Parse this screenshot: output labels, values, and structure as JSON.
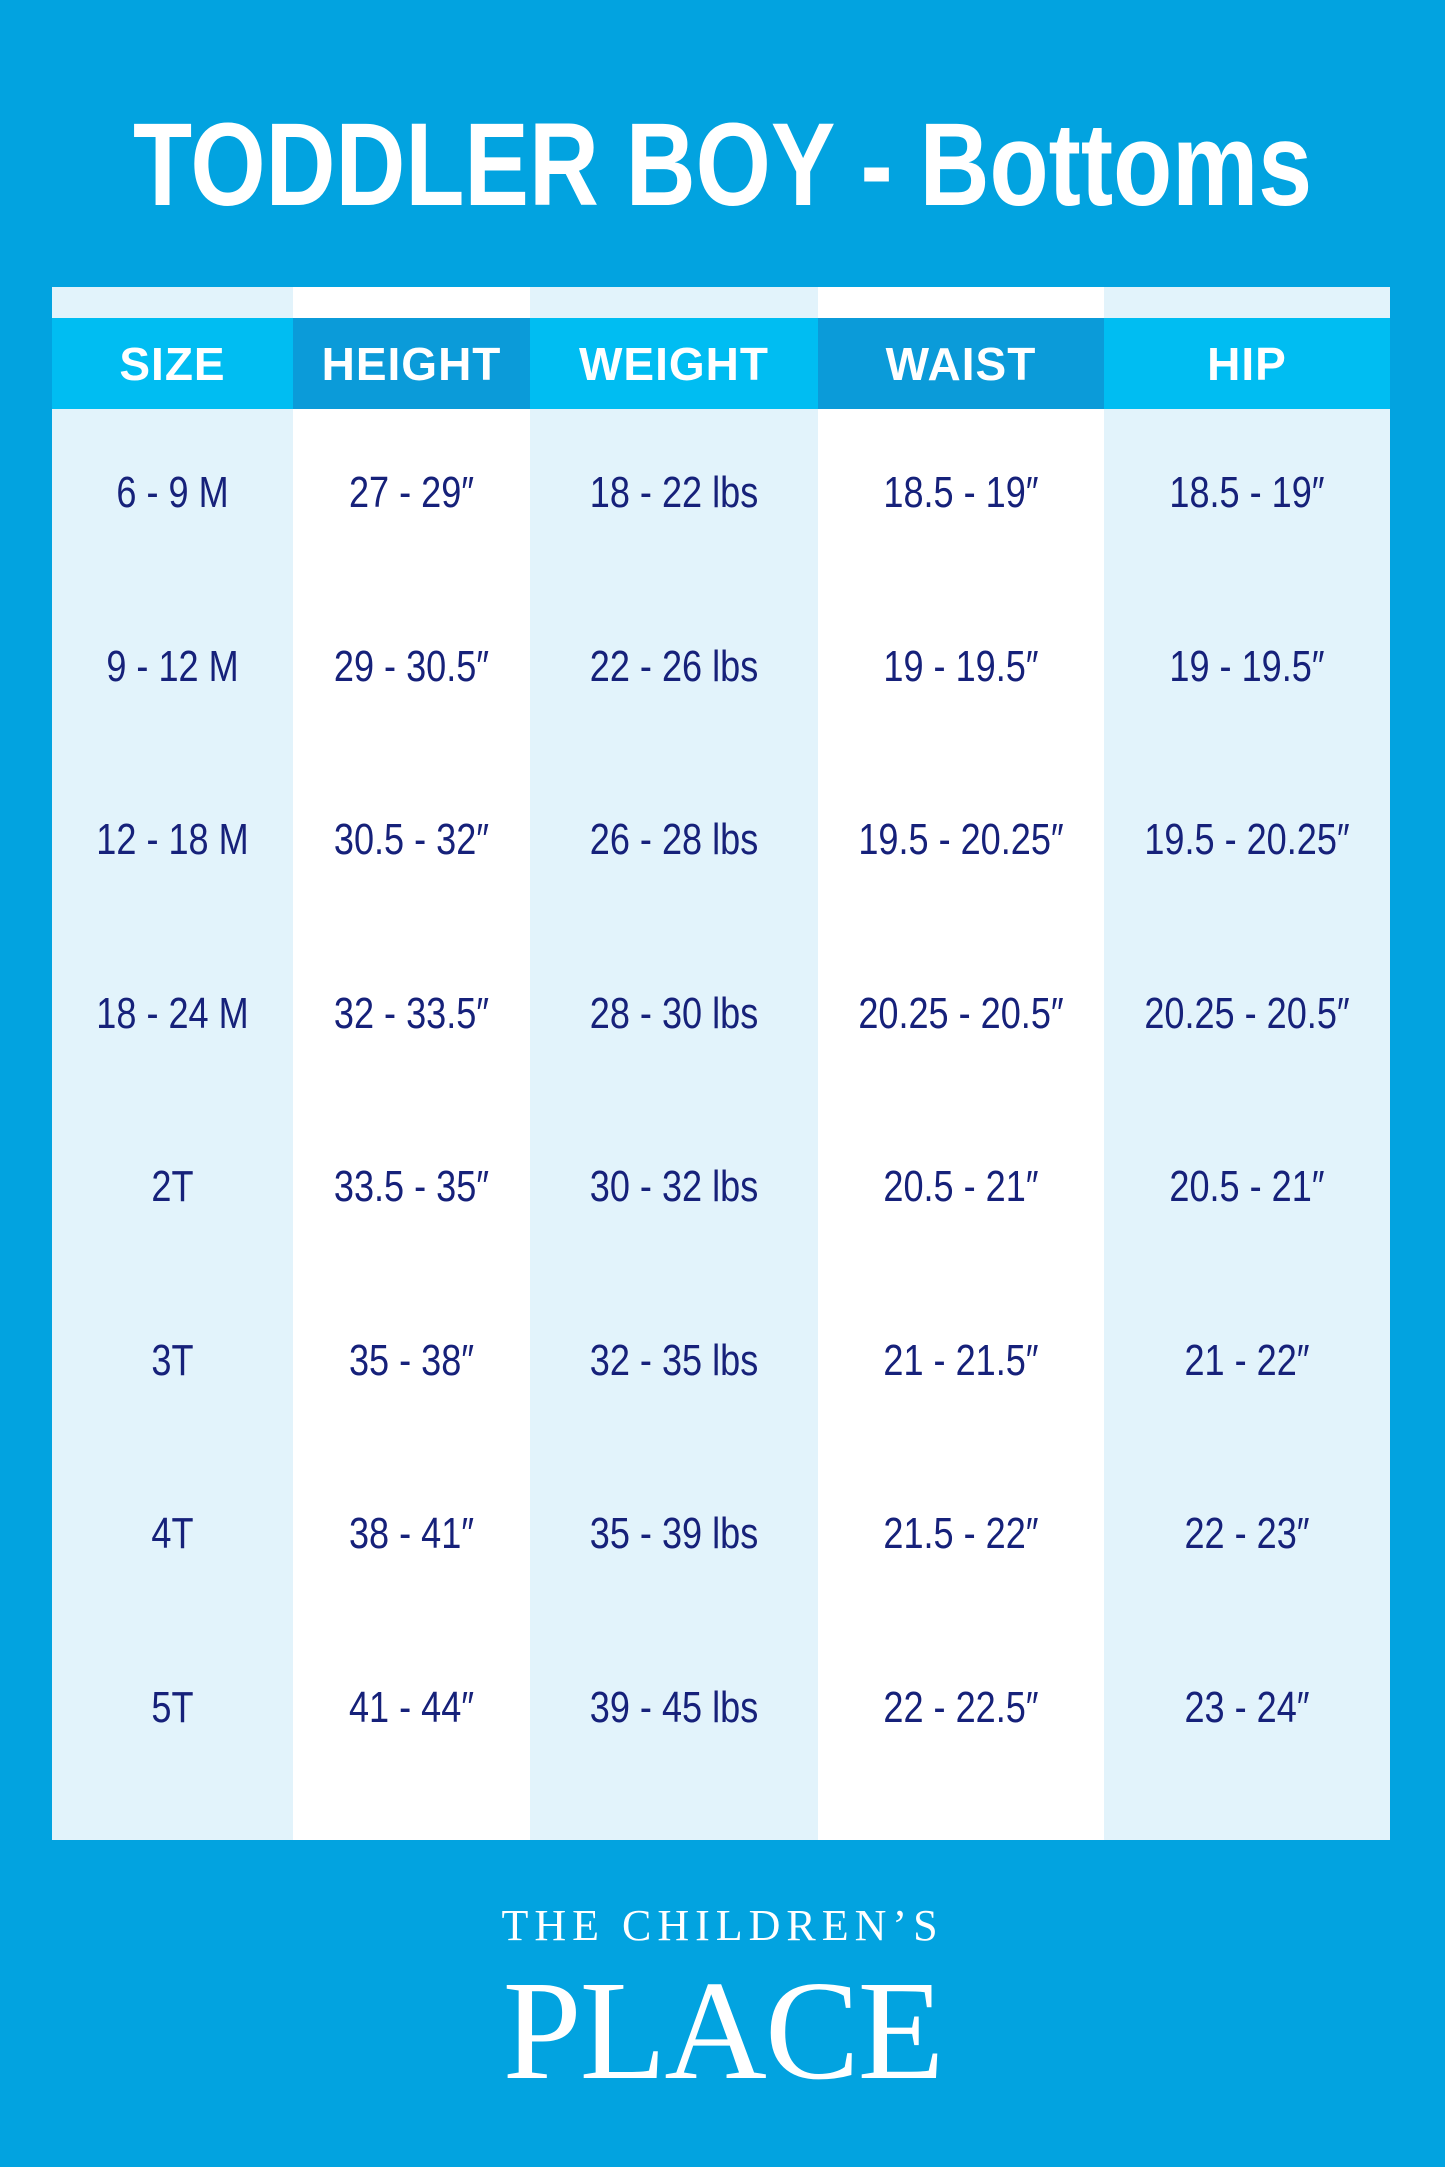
{
  "header": {
    "title": "TODDLER BOY - Bottoms"
  },
  "table": {
    "headers": [
      "SIZE",
      "HEIGHT",
      "WEIGHT",
      "WAIST",
      "HIP"
    ],
    "rows": [
      [
        "6 - 9 M",
        "27 - 29″",
        "18 - 22 lbs",
        "18.5 - 19″",
        "18.5 - 19″"
      ],
      [
        "9 - 12 M",
        "29 - 30.5″",
        "22 - 26 lbs",
        "19 - 19.5″",
        "19 - 19.5″"
      ],
      [
        "12 - 18 M",
        "30.5 - 32″",
        "26 - 28 lbs",
        "19.5 - 20.25″",
        "19.5 - 20.25″"
      ],
      [
        "18 - 24 M",
        "32 - 33.5″",
        "28 - 30 lbs",
        "20.25 - 20.5″",
        "20.25 - 20.5″"
      ],
      [
        "2T",
        "33.5 - 35″",
        "30 - 32 lbs",
        "20.5 - 21″",
        "20.5 - 21″"
      ],
      [
        "3T",
        "35 - 38″",
        "32 - 35 lbs",
        "21 - 21.5″",
        "21 - 22″"
      ],
      [
        "4T",
        "38 - 41″",
        "35 - 39 lbs",
        "21.5 - 22″",
        "22 - 23″"
      ],
      [
        "5T",
        "41 - 44″",
        "39 - 45 lbs",
        "22 - 22.5″",
        "23 - 24″"
      ]
    ]
  },
  "brand": {
    "line1": "THE CHILDREN’S",
    "line2": "PLACE"
  }
}
